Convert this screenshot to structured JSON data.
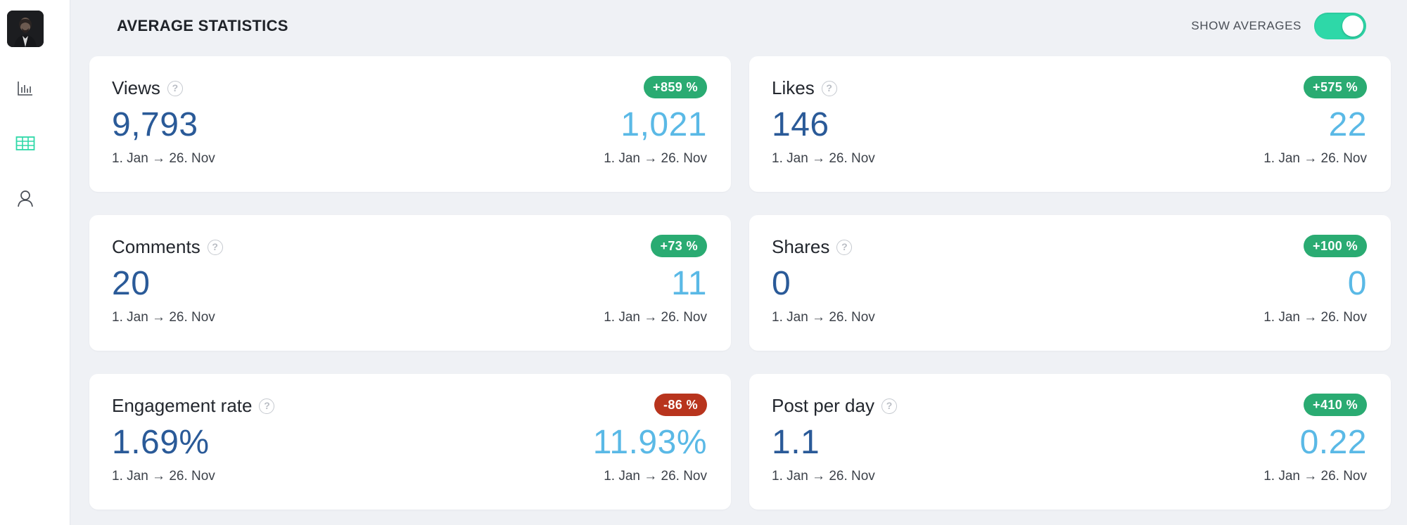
{
  "sidebar": {
    "items": [
      {
        "icon": "bar-chart-icon",
        "active": false
      },
      {
        "icon": "table-icon",
        "active": true
      },
      {
        "icon": "user-icon",
        "active": false
      }
    ]
  },
  "header": {
    "title": "AVERAGE STATISTICS",
    "toggle_label": "SHOW AVERAGES",
    "toggle_on": true
  },
  "colors": {
    "accent": "#2ed8a8",
    "value_primary": "#2a5a98",
    "value_average": "#5ab9e6",
    "badge_positive": "#2aab72",
    "badge_negative": "#b8341d"
  },
  "cards": [
    {
      "title": "Views",
      "value": "9,793",
      "average": "1,021",
      "badge": "+859 %",
      "badge_type": "pos",
      "date_range": "1. Jan → 26. Nov",
      "average_date_range": "1. Jan → 26. Nov"
    },
    {
      "title": "Likes",
      "value": "146",
      "average": "22",
      "badge": "+575 %",
      "badge_type": "pos",
      "date_range": "1. Jan → 26. Nov",
      "average_date_range": "1. Jan → 26. Nov"
    },
    {
      "title": "Comments",
      "value": "20",
      "average": "11",
      "badge": "+73 %",
      "badge_type": "pos",
      "date_range": "1. Jan → 26. Nov",
      "average_date_range": "1. Jan → 26. Nov"
    },
    {
      "title": "Shares",
      "value": "0",
      "average": "0",
      "badge": "+100 %",
      "badge_type": "pos",
      "date_range": "1. Jan → 26. Nov",
      "average_date_range": "1. Jan → 26. Nov"
    },
    {
      "title": "Engagement rate",
      "value": "1.69%",
      "average": "11.93%",
      "badge": "-86 %",
      "badge_type": "neg",
      "date_range": "1. Jan → 26. Nov",
      "average_date_range": "1. Jan → 26. Nov"
    },
    {
      "title": "Post per day",
      "value": "1.1",
      "average": "0.22",
      "badge": "+410 %",
      "badge_type": "pos",
      "date_range": "1. Jan → 26. Nov",
      "average_date_range": "1. Jan → 26. Nov"
    }
  ]
}
